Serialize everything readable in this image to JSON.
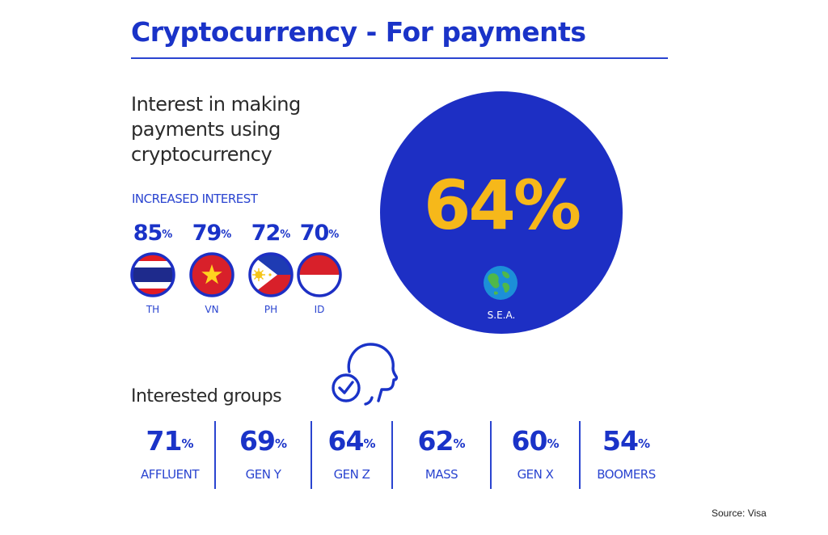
{
  "title": "Cryptocurrency - For payments",
  "subtitle": "Interest in making payments using cryptocurrency",
  "increased_interest": {
    "label": "INCREASED INTEREST",
    "countries": [
      {
        "pct": "85",
        "code": "TH",
        "flag": "thailand-flag-icon"
      },
      {
        "pct": "79",
        "code": "VN",
        "flag": "vietnam-flag-icon"
      },
      {
        "pct": "72",
        "code": "PH",
        "flag": "philippines-flag-icon"
      },
      {
        "pct": "70",
        "code": "ID",
        "flag": "indonesia-flag-icon"
      }
    ]
  },
  "region": {
    "pct": "64%",
    "label": "S.E.A.",
    "icon": "globe-icon"
  },
  "groups_label": "Interested groups",
  "groups_icon": "head-check-icon",
  "groups": [
    {
      "pct": "71",
      "name": "AFFLUENT"
    },
    {
      "pct": "69",
      "name": "GEN Y"
    },
    {
      "pct": "64",
      "name": "GEN Z"
    },
    {
      "pct": "62",
      "name": "MASS"
    },
    {
      "pct": "60",
      "name": "GEN X"
    },
    {
      "pct": "54",
      "name": "BOOMERS"
    }
  ],
  "percent_sign": "%",
  "source": "Source: Visa",
  "colors": {
    "brand_blue": "#1a33c8",
    "circle_blue": "#1d2fc4",
    "accent_yellow": "#f6b81a"
  }
}
